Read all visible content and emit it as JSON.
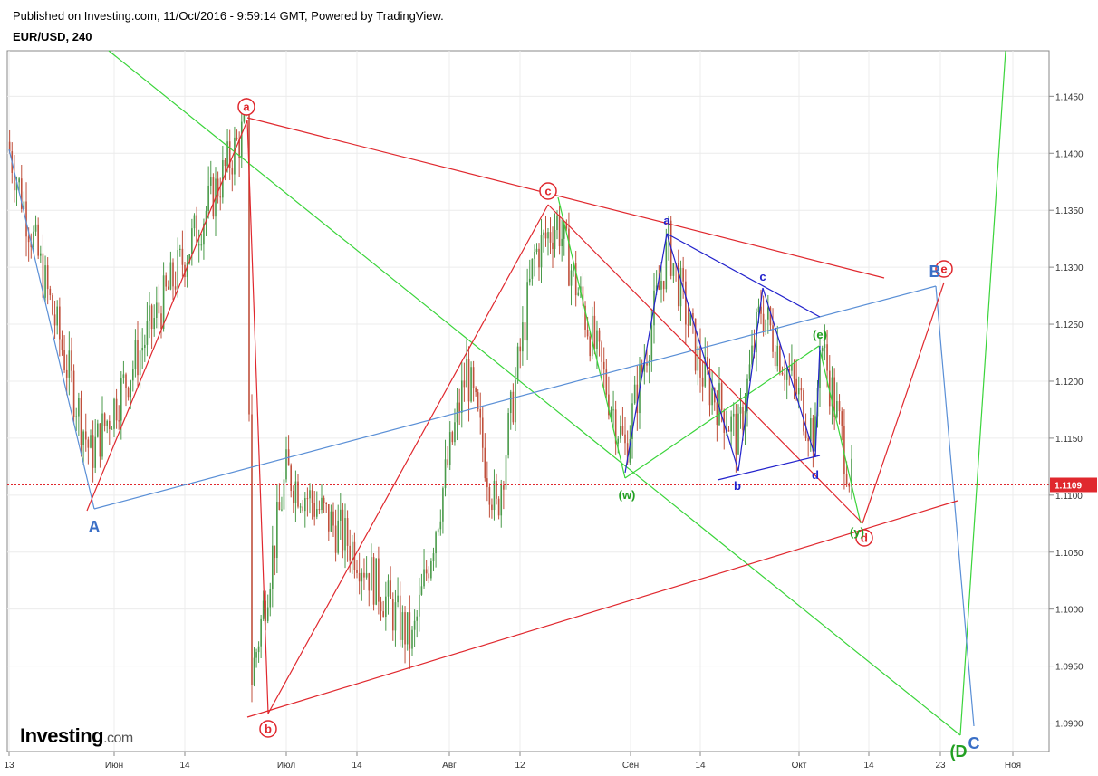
{
  "header": {
    "published": "Published on Investing.com, 11/Oct/2016 - 9:59:14 GMT, Powered by TradingView.",
    "symbol": "EUR/USD, 240"
  },
  "logo": {
    "brand": "Investing",
    "suffix": ".com"
  },
  "chart_data": {
    "type": "candlestick",
    "symbol": "EUR/USD",
    "timeframe": "240",
    "ylim": [
      1.0875,
      1.149
    ],
    "yticks": [
      "1.1450",
      "1.1400",
      "1.1350",
      "1.1300",
      "1.1250",
      "1.1200",
      "1.1150",
      "1.1100",
      "1.1050",
      "1.1000",
      "1.0950",
      "1.0900"
    ],
    "xticks": [
      "13",
      "Июн",
      "14",
      "Июл",
      "14",
      "Авг",
      "12",
      "Сен",
      "14",
      "Окт",
      "14",
      "23",
      "Ноя"
    ],
    "last_price": "1.1109",
    "grid": true,
    "colors": {
      "up": "#4a9a4a",
      "down": "#c0503c",
      "red_wave": "#e0282e",
      "blue_wave": "#2222cc",
      "green_wave": "#3ad43a",
      "light_blue": "#5a8fd6",
      "price_line": "#e0282e"
    },
    "candle_path": [
      [
        "13",
        1.141
      ],
      [
        "Июн",
        1.1135
      ],
      [
        "14",
        1.131
      ],
      [
        "",
        1.1425
      ],
      [
        "",
        1.094
      ],
      [
        "Июл",
        1.112
      ],
      [
        "14",
        1.105
      ],
      [
        "",
        1.097
      ],
      [
        "Авг",
        1.121
      ],
      [
        "",
        1.1085
      ],
      [
        "12",
        1.131
      ],
      [
        "",
        1.134
      ],
      [
        "Сен",
        1.114
      ],
      [
        "",
        1.132
      ],
      [
        "14",
        1.121
      ],
      [
        "",
        1.115
      ],
      [
        "",
        1.1265
      ],
      [
        "Окт",
        1.115
      ],
      [
        "",
        1.124
      ],
      [
        "",
        1.111
      ]
    ],
    "wave_labels": [
      {
        "text": "a",
        "series": "red"
      },
      {
        "text": "b",
        "series": "red"
      },
      {
        "text": "c",
        "series": "red"
      },
      {
        "text": "d",
        "series": "red"
      },
      {
        "text": "e",
        "series": "red"
      },
      {
        "text": "A",
        "series": "light_blue"
      },
      {
        "text": "B",
        "series": "light_blue"
      },
      {
        "text": "C",
        "series": "light_blue"
      },
      {
        "text": "a",
        "series": "blue"
      },
      {
        "text": "b",
        "series": "blue"
      },
      {
        "text": "c",
        "series": "blue"
      },
      {
        "text": "d",
        "series": "blue"
      },
      {
        "text": "(e)",
        "series": "green"
      },
      {
        "text": "(w)",
        "series": "green"
      },
      {
        "text": "(y)",
        "series": "green"
      },
      {
        "text": "(D",
        "series": "green"
      }
    ]
  }
}
